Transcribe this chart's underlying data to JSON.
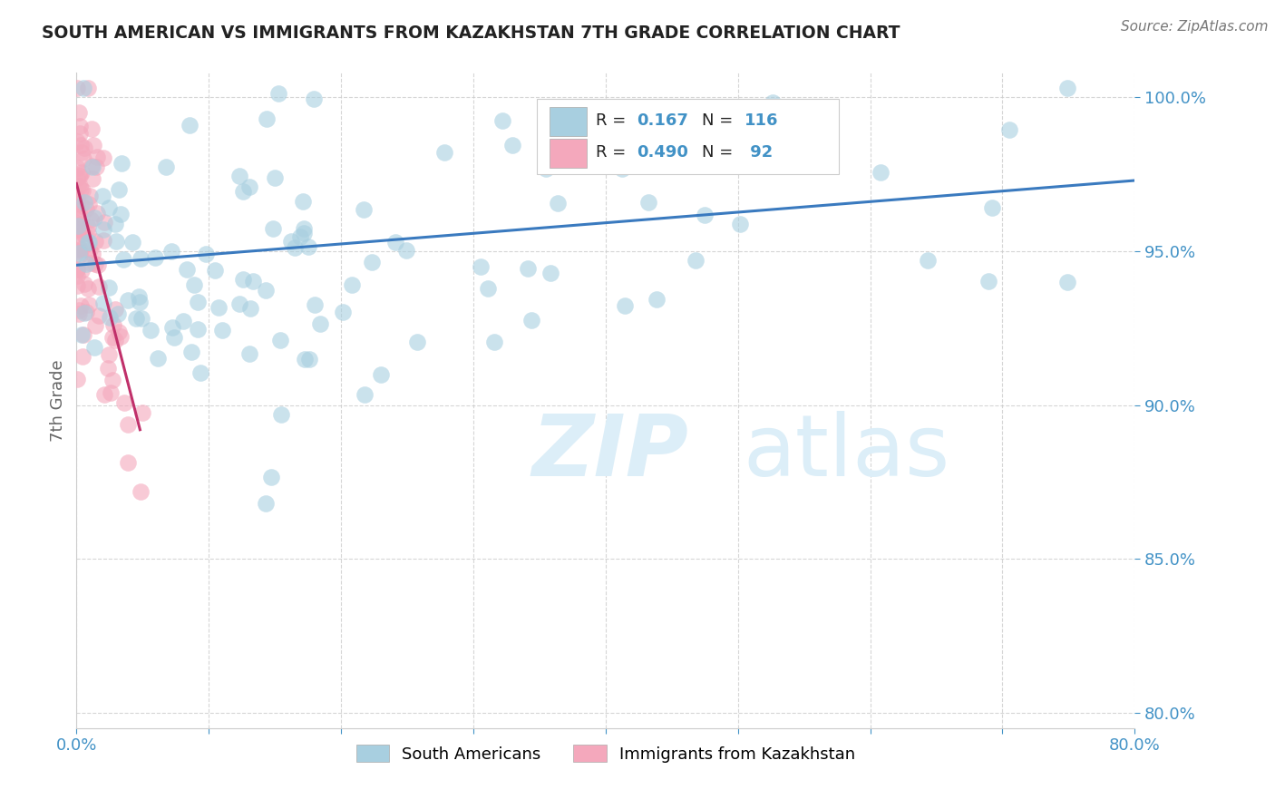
{
  "title": "SOUTH AMERICAN VS IMMIGRANTS FROM KAZAKHSTAN 7TH GRADE CORRELATION CHART",
  "source": "Source: ZipAtlas.com",
  "ylabel": "7th Grade",
  "xlim": [
    0.0,
    0.8
  ],
  "ylim": [
    0.795,
    1.008
  ],
  "yticks": [
    0.8,
    0.85,
    0.9,
    0.95,
    1.0
  ],
  "ytick_labels": [
    "80.0%",
    "85.0%",
    "90.0%",
    "95.0%",
    "100.0%"
  ],
  "xticks": [
    0.0,
    0.1,
    0.2,
    0.3,
    0.4,
    0.5,
    0.6,
    0.7,
    0.8
  ],
  "xtick_labels": [
    "0.0%",
    "",
    "",
    "",
    "",
    "",
    "",
    "",
    "80.0%"
  ],
  "blue_color": "#a8cfe0",
  "pink_color": "#f4a8bc",
  "line_color": "#3a7abf",
  "tick_color": "#4292c6",
  "grid_color": "#cccccc",
  "watermark_color": "#dceef8",
  "trendline_x": [
    0.0,
    0.8
  ],
  "trendline_y": [
    0.9455,
    0.973
  ],
  "pink_trendline_x": [
    0.0,
    0.048
  ],
  "pink_trendline_y": [
    0.972,
    0.892
  ]
}
